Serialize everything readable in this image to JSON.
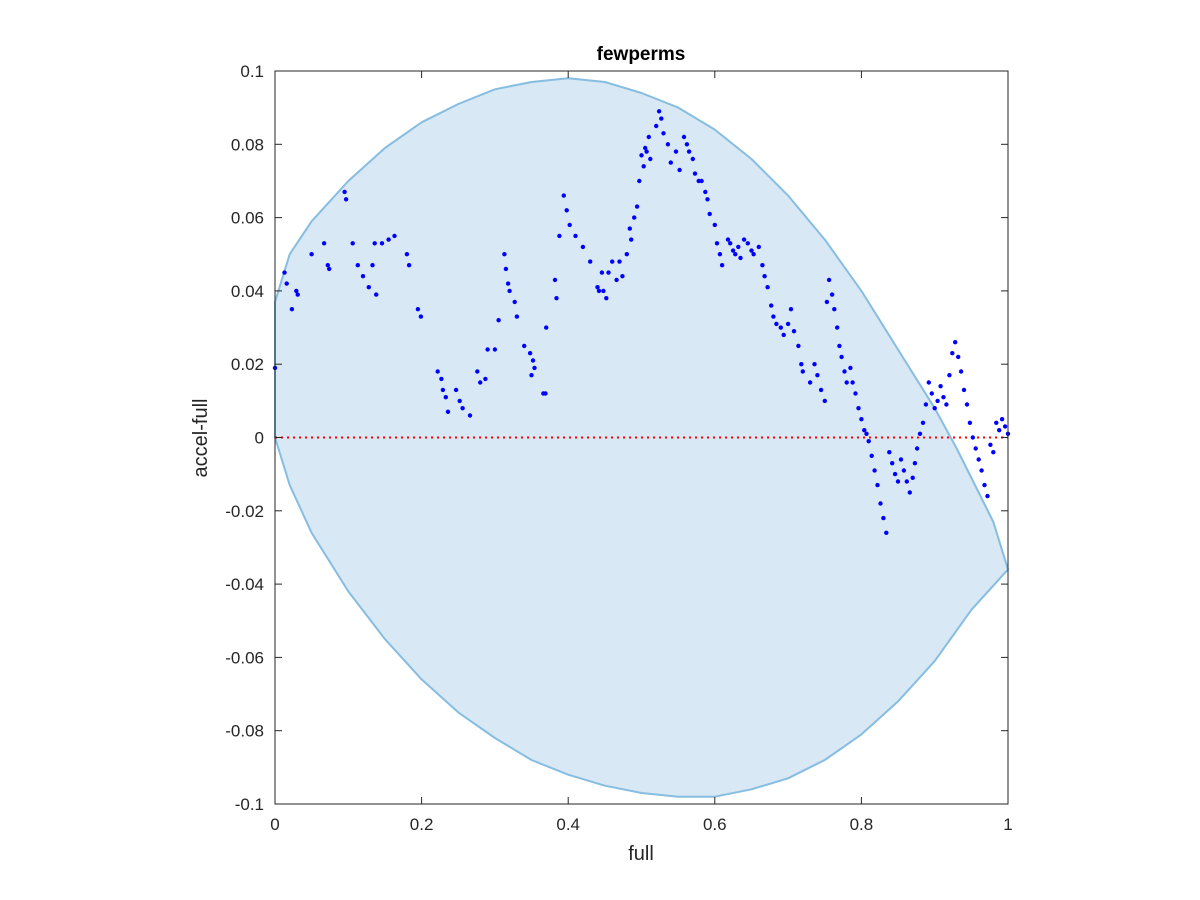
{
  "chart_data": {
    "type": "scatter",
    "title": "fewperms",
    "xlabel": "full",
    "ylabel": "accel-full",
    "xlim": [
      0,
      1
    ],
    "ylim": [
      -0.1,
      0.1
    ],
    "xticks": [
      0,
      0.2,
      0.4,
      0.6,
      0.8,
      1
    ],
    "xtick_labels": [
      "0",
      "0.2",
      "0.4",
      "0.6",
      "0.8",
      "1"
    ],
    "yticks": [
      -0.1,
      -0.08,
      -0.06,
      -0.04,
      -0.02,
      0,
      0.02,
      0.04,
      0.06,
      0.08,
      0.1
    ],
    "ytick_labels": [
      "-0.1",
      "-0.08",
      "-0.06",
      "-0.04",
      "-0.02",
      "0",
      "0.02",
      "0.04",
      "0.06",
      "0.08",
      "0.1"
    ],
    "grid": false,
    "reference_line": {
      "y": 0,
      "style": "dotted",
      "color": "#ff0000"
    },
    "region": {
      "shape": "ellipse",
      "fill_color": "#d8e8f4",
      "edge_color": "#86bde0",
      "upper_boundary": [
        [
          0,
          0.037
        ],
        [
          0.02,
          0.05
        ],
        [
          0.05,
          0.059
        ],
        [
          0.1,
          0.07
        ],
        [
          0.15,
          0.079
        ],
        [
          0.2,
          0.086
        ],
        [
          0.25,
          0.091
        ],
        [
          0.3,
          0.095
        ],
        [
          0.35,
          0.097
        ],
        [
          0.4,
          0.098
        ],
        [
          0.45,
          0.097
        ],
        [
          0.5,
          0.094
        ],
        [
          0.55,
          0.09
        ],
        [
          0.6,
          0.084
        ],
        [
          0.65,
          0.076
        ],
        [
          0.7,
          0.066
        ],
        [
          0.75,
          0.054
        ],
        [
          0.8,
          0.04
        ],
        [
          0.85,
          0.024
        ],
        [
          0.9,
          0.008
        ],
        [
          0.93,
          -0.003
        ],
        [
          0.96,
          -0.015
        ],
        [
          0.98,
          -0.023
        ],
        [
          1.0,
          -0.036
        ]
      ],
      "lower_boundary": [
        [
          0,
          0.0
        ],
        [
          0.02,
          -0.013
        ],
        [
          0.05,
          -0.026
        ],
        [
          0.1,
          -0.042
        ],
        [
          0.15,
          -0.055
        ],
        [
          0.2,
          -0.066
        ],
        [
          0.25,
          -0.075
        ],
        [
          0.3,
          -0.082
        ],
        [
          0.35,
          -0.088
        ],
        [
          0.4,
          -0.092
        ],
        [
          0.45,
          -0.095
        ],
        [
          0.5,
          -0.097
        ],
        [
          0.55,
          -0.098
        ],
        [
          0.6,
          -0.098
        ],
        [
          0.65,
          -0.096
        ],
        [
          0.7,
          -0.093
        ],
        [
          0.75,
          -0.088
        ],
        [
          0.8,
          -0.081
        ],
        [
          0.85,
          -0.072
        ],
        [
          0.9,
          -0.061
        ],
        [
          0.95,
          -0.047
        ],
        [
          1.0,
          -0.036
        ]
      ]
    },
    "series": [
      {
        "color": "#0000ff",
        "points": [
          [
            0.0,
            0.019
          ],
          [
            0.013,
            0.045
          ],
          [
            0.016,
            0.042
          ],
          [
            0.023,
            0.035
          ],
          [
            0.029,
            0.04
          ],
          [
            0.031,
            0.039
          ],
          [
            0.05,
            0.05
          ],
          [
            0.067,
            0.053
          ],
          [
            0.072,
            0.047
          ],
          [
            0.074,
            0.046
          ],
          [
            0.095,
            0.067
          ],
          [
            0.097,
            0.065
          ],
          [
            0.106,
            0.053
          ],
          [
            0.113,
            0.047
          ],
          [
            0.12,
            0.044
          ],
          [
            0.128,
            0.041
          ],
          [
            0.133,
            0.047
          ],
          [
            0.136,
            0.053
          ],
          [
            0.138,
            0.039
          ],
          [
            0.146,
            0.053
          ],
          [
            0.155,
            0.054
          ],
          [
            0.163,
            0.055
          ],
          [
            0.18,
            0.05
          ],
          [
            0.183,
            0.047
          ],
          [
            0.195,
            0.035
          ],
          [
            0.199,
            0.033
          ],
          [
            0.222,
            0.018
          ],
          [
            0.227,
            0.016
          ],
          [
            0.229,
            0.013
          ],
          [
            0.233,
            0.011
          ],
          [
            0.236,
            0.007
          ],
          [
            0.247,
            0.013
          ],
          [
            0.252,
            0.01
          ],
          [
            0.256,
            0.008
          ],
          [
            0.266,
            0.006
          ],
          [
            0.276,
            0.018
          ],
          [
            0.28,
            0.015
          ],
          [
            0.287,
            0.016
          ],
          [
            0.29,
            0.024
          ],
          [
            0.3,
            0.024
          ],
          [
            0.305,
            0.032
          ],
          [
            0.313,
            0.05
          ],
          [
            0.315,
            0.046
          ],
          [
            0.318,
            0.042
          ],
          [
            0.32,
            0.04
          ],
          [
            0.327,
            0.037
          ],
          [
            0.33,
            0.033
          ],
          [
            0.34,
            0.025
          ],
          [
            0.348,
            0.023
          ],
          [
            0.352,
            0.021
          ],
          [
            0.354,
            0.019
          ],
          [
            0.35,
            0.017
          ],
          [
            0.366,
            0.012
          ],
          [
            0.369,
            0.012
          ],
          [
            0.37,
            0.03
          ],
          [
            0.382,
            0.043
          ],
          [
            0.384,
            0.038
          ],
          [
            0.388,
            0.055
          ],
          [
            0.394,
            0.066
          ],
          [
            0.398,
            0.062
          ],
          [
            0.402,
            0.058
          ],
          [
            0.41,
            0.055
          ],
          [
            0.42,
            0.052
          ],
          [
            0.43,
            0.048
          ],
          [
            0.44,
            0.041
          ],
          [
            0.442,
            0.04
          ],
          [
            0.446,
            0.045
          ],
          [
            0.448,
            0.04
          ],
          [
            0.452,
            0.038
          ],
          [
            0.455,
            0.045
          ],
          [
            0.46,
            0.048
          ],
          [
            0.466,
            0.043
          ],
          [
            0.47,
            0.048
          ],
          [
            0.474,
            0.044
          ],
          [
            0.48,
            0.05
          ],
          [
            0.484,
            0.057
          ],
          [
            0.486,
            0.054
          ],
          [
            0.49,
            0.06
          ],
          [
            0.494,
            0.063
          ],
          [
            0.497,
            0.07
          ],
          [
            0.5,
            0.077
          ],
          [
            0.503,
            0.074
          ],
          [
            0.505,
            0.079
          ],
          [
            0.507,
            0.078
          ],
          [
            0.51,
            0.082
          ],
          [
            0.512,
            0.076
          ],
          [
            0.52,
            0.085
          ],
          [
            0.524,
            0.089
          ],
          [
            0.527,
            0.087
          ],
          [
            0.53,
            0.083
          ],
          [
            0.536,
            0.08
          ],
          [
            0.54,
            0.075
          ],
          [
            0.547,
            0.078
          ],
          [
            0.552,
            0.073
          ],
          [
            0.558,
            0.082
          ],
          [
            0.562,
            0.08
          ],
          [
            0.565,
            0.078
          ],
          [
            0.57,
            0.076
          ],
          [
            0.573,
            0.072
          ],
          [
            0.578,
            0.07
          ],
          [
            0.582,
            0.07
          ],
          [
            0.587,
            0.067
          ],
          [
            0.59,
            0.065
          ],
          [
            0.593,
            0.061
          ],
          [
            0.6,
            0.058
          ],
          [
            0.603,
            0.053
          ],
          [
            0.607,
            0.05
          ],
          [
            0.61,
            0.047
          ],
          [
            0.618,
            0.054
          ],
          [
            0.621,
            0.053
          ],
          [
            0.625,
            0.051
          ],
          [
            0.628,
            0.05
          ],
          [
            0.632,
            0.052
          ],
          [
            0.635,
            0.049
          ],
          [
            0.64,
            0.054
          ],
          [
            0.645,
            0.053
          ],
          [
            0.65,
            0.051
          ],
          [
            0.653,
            0.05
          ],
          [
            0.66,
            0.052
          ],
          [
            0.665,
            0.047
          ],
          [
            0.668,
            0.044
          ],
          [
            0.672,
            0.041
          ],
          [
            0.677,
            0.036
          ],
          [
            0.68,
            0.033
          ],
          [
            0.684,
            0.031
          ],
          [
            0.69,
            0.03
          ],
          [
            0.694,
            0.028
          ],
          [
            0.7,
            0.031
          ],
          [
            0.704,
            0.035
          ],
          [
            0.708,
            0.029
          ],
          [
            0.714,
            0.025
          ],
          [
            0.718,
            0.02
          ],
          [
            0.72,
            0.018
          ],
          [
            0.73,
            0.015
          ],
          [
            0.736,
            0.02
          ],
          [
            0.74,
            0.017
          ],
          [
            0.745,
            0.013
          ],
          [
            0.75,
            0.01
          ],
          [
            0.753,
            0.037
          ],
          [
            0.756,
            0.043
          ],
          [
            0.76,
            0.039
          ],
          [
            0.763,
            0.035
          ],
          [
            0.767,
            0.03
          ],
          [
            0.77,
            0.025
          ],
          [
            0.773,
            0.022
          ],
          [
            0.777,
            0.018
          ],
          [
            0.78,
            0.015
          ],
          [
            0.785,
            0.019
          ],
          [
            0.788,
            0.015
          ],
          [
            0.792,
            0.012
          ],
          [
            0.796,
            0.008
          ],
          [
            0.8,
            0.005
          ],
          [
            0.804,
            0.002
          ],
          [
            0.807,
            0.001
          ],
          [
            0.81,
            -0.001
          ],
          [
            0.814,
            -0.005
          ],
          [
            0.818,
            -0.009
          ],
          [
            0.822,
            -0.013
          ],
          [
            0.826,
            -0.018
          ],
          [
            0.83,
            -0.022
          ],
          [
            0.834,
            -0.026
          ],
          [
            0.838,
            -0.004
          ],
          [
            0.842,
            -0.007
          ],
          [
            0.846,
            -0.01
          ],
          [
            0.85,
            -0.012
          ],
          [
            0.854,
            -0.006
          ],
          [
            0.858,
            -0.009
          ],
          [
            0.862,
            -0.012
          ],
          [
            0.866,
            -0.015
          ],
          [
            0.87,
            -0.011
          ],
          [
            0.873,
            -0.007
          ],
          [
            0.876,
            -0.003
          ],
          [
            0.88,
            0.001
          ],
          [
            0.884,
            0.004
          ],
          [
            0.888,
            0.009
          ],
          [
            0.892,
            0.015
          ],
          [
            0.896,
            0.012
          ],
          [
            0.9,
            0.008
          ],
          [
            0.904,
            0.01
          ],
          [
            0.908,
            0.014
          ],
          [
            0.912,
            0.011
          ],
          [
            0.916,
            0.009
          ],
          [
            0.92,
            0.017
          ],
          [
            0.924,
            0.023
          ],
          [
            0.928,
            0.026
          ],
          [
            0.932,
            0.022
          ],
          [
            0.936,
            0.018
          ],
          [
            0.94,
            0.013
          ],
          [
            0.944,
            0.009
          ],
          [
            0.948,
            0.004
          ],
          [
            0.952,
            0.0
          ],
          [
            0.956,
            -0.003
          ],
          [
            0.96,
            -0.006
          ],
          [
            0.964,
            -0.009
          ],
          [
            0.968,
            -0.013
          ],
          [
            0.972,
            -0.016
          ],
          [
            0.976,
            -0.002
          ],
          [
            0.98,
            -0.004
          ],
          [
            0.984,
            0.004
          ],
          [
            0.988,
            0.002
          ],
          [
            0.992,
            0.005
          ],
          [
            0.996,
            0.003
          ],
          [
            1.0,
            0.001
          ]
        ]
      }
    ]
  }
}
